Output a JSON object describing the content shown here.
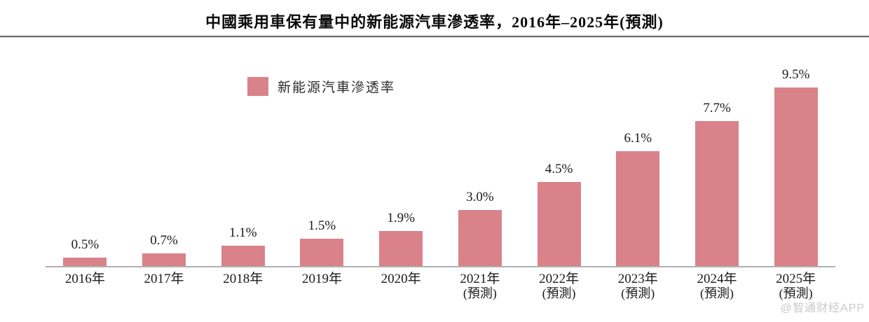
{
  "title": "中國乘用車保有量中的新能源汽車滲透率，2016年–2025年(預測)",
  "legend": {
    "label": "新能源汽車滲透率",
    "swatch_color": "#d9828a"
  },
  "watermark": "@智通财经APP",
  "colors": {
    "bar": "#d9828a",
    "axis_line": "#b0b0b0",
    "title_rule": "#6b6b6b",
    "text": "#1a1a1a",
    "watermark": "#c9c9c9"
  },
  "chart_data": {
    "type": "bar",
    "title": "中國乘用車保有量中的新能源汽車滲透率，2016年–2025年(預測)",
    "series_name": "新能源汽車滲透率",
    "categories": [
      "2016年",
      "2017年",
      "2018年",
      "2019年",
      "2020年",
      "2021年",
      "2022年",
      "2023年",
      "2024年",
      "2025年"
    ],
    "category_sublabels": [
      "",
      "",
      "",
      "",
      "",
      "(預測)",
      "(預測)",
      "(預測)",
      "(預測)",
      "(預測)"
    ],
    "values": [
      0.5,
      0.7,
      1.1,
      1.5,
      1.9,
      3.0,
      4.5,
      6.1,
      7.7,
      9.5
    ],
    "value_labels": [
      "0.5%",
      "0.7%",
      "1.1%",
      "1.5%",
      "1.9%",
      "3.0%",
      "4.5%",
      "6.1%",
      "7.7%",
      "9.5%"
    ],
    "xlabel": "",
    "ylabel": "",
    "ylim": [
      0,
      10
    ],
    "grid": false,
    "legend_position": "top-left-of-plot",
    "bar_color": "#d9828a"
  }
}
